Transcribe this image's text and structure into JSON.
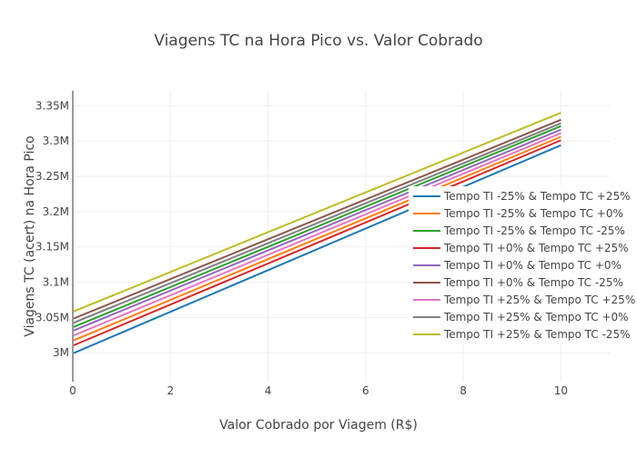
{
  "chart_data": {
    "type": "line",
    "title": "Viagens TC na Hora Pico vs. Valor Cobrado",
    "xlabel": "Valor Cobrado por Viagem (R$)",
    "ylabel": "Viagens TC (acert) na Hora Pico",
    "xlim": [
      0,
      11
    ],
    "ylim": [
      2.959,
      3.371
    ],
    "xticks": [
      0,
      2,
      4,
      6,
      8,
      10
    ],
    "xtick_labels": [
      "0",
      "2",
      "4",
      "6",
      "8",
      "10"
    ],
    "yticks": [
      3.0,
      3.05,
      3.1,
      3.15,
      3.2,
      3.25,
      3.3,
      3.35
    ],
    "ytick_labels": [
      "3M",
      "3.05M",
      "3.1M",
      "3.15M",
      "3.2M",
      "3.25M",
      "3.3M",
      "3.35M"
    ],
    "grid": true,
    "legend_position": "right-middle",
    "x": [
      0,
      10
    ],
    "series": [
      {
        "name": "Tempo TI -25% & Tempo TC +25%",
        "color": "#1f77b4",
        "values": [
          2.999,
          3.294
        ]
      },
      {
        "name": "Tempo TI -25% & Tempo TC +0%",
        "color": "#ff7f0e",
        "values": [
          3.017,
          3.306
        ]
      },
      {
        "name": "Tempo TI -25% & Tempo TC -25%",
        "color": "#2ca02c",
        "values": [
          3.036,
          3.321
        ]
      },
      {
        "name": "Tempo TI +0% & Tempo TC +25%",
        "color": "#d62728",
        "values": [
          3.01,
          3.301
        ]
      },
      {
        "name": "Tempo TI +0% & Tempo TC +0%",
        "color": "#9467bd",
        "values": [
          3.031,
          3.316
        ]
      },
      {
        "name": "Tempo TI +0% & Tempo TC -25%",
        "color": "#8c564b",
        "values": [
          3.048,
          3.33
        ]
      },
      {
        "name": "Tempo TI +25% & Tempo TC +25%",
        "color": "#e377c2",
        "values": [
          3.024,
          3.311
        ]
      },
      {
        "name": "Tempo TI +25% & Tempo TC +0%",
        "color": "#7f7f7f",
        "values": [
          3.042,
          3.325
        ]
      },
      {
        "name": "Tempo TI +25% & Tempo TC -25%",
        "color": "#bcbd22",
        "values": [
          3.058,
          3.34
        ]
      }
    ]
  }
}
